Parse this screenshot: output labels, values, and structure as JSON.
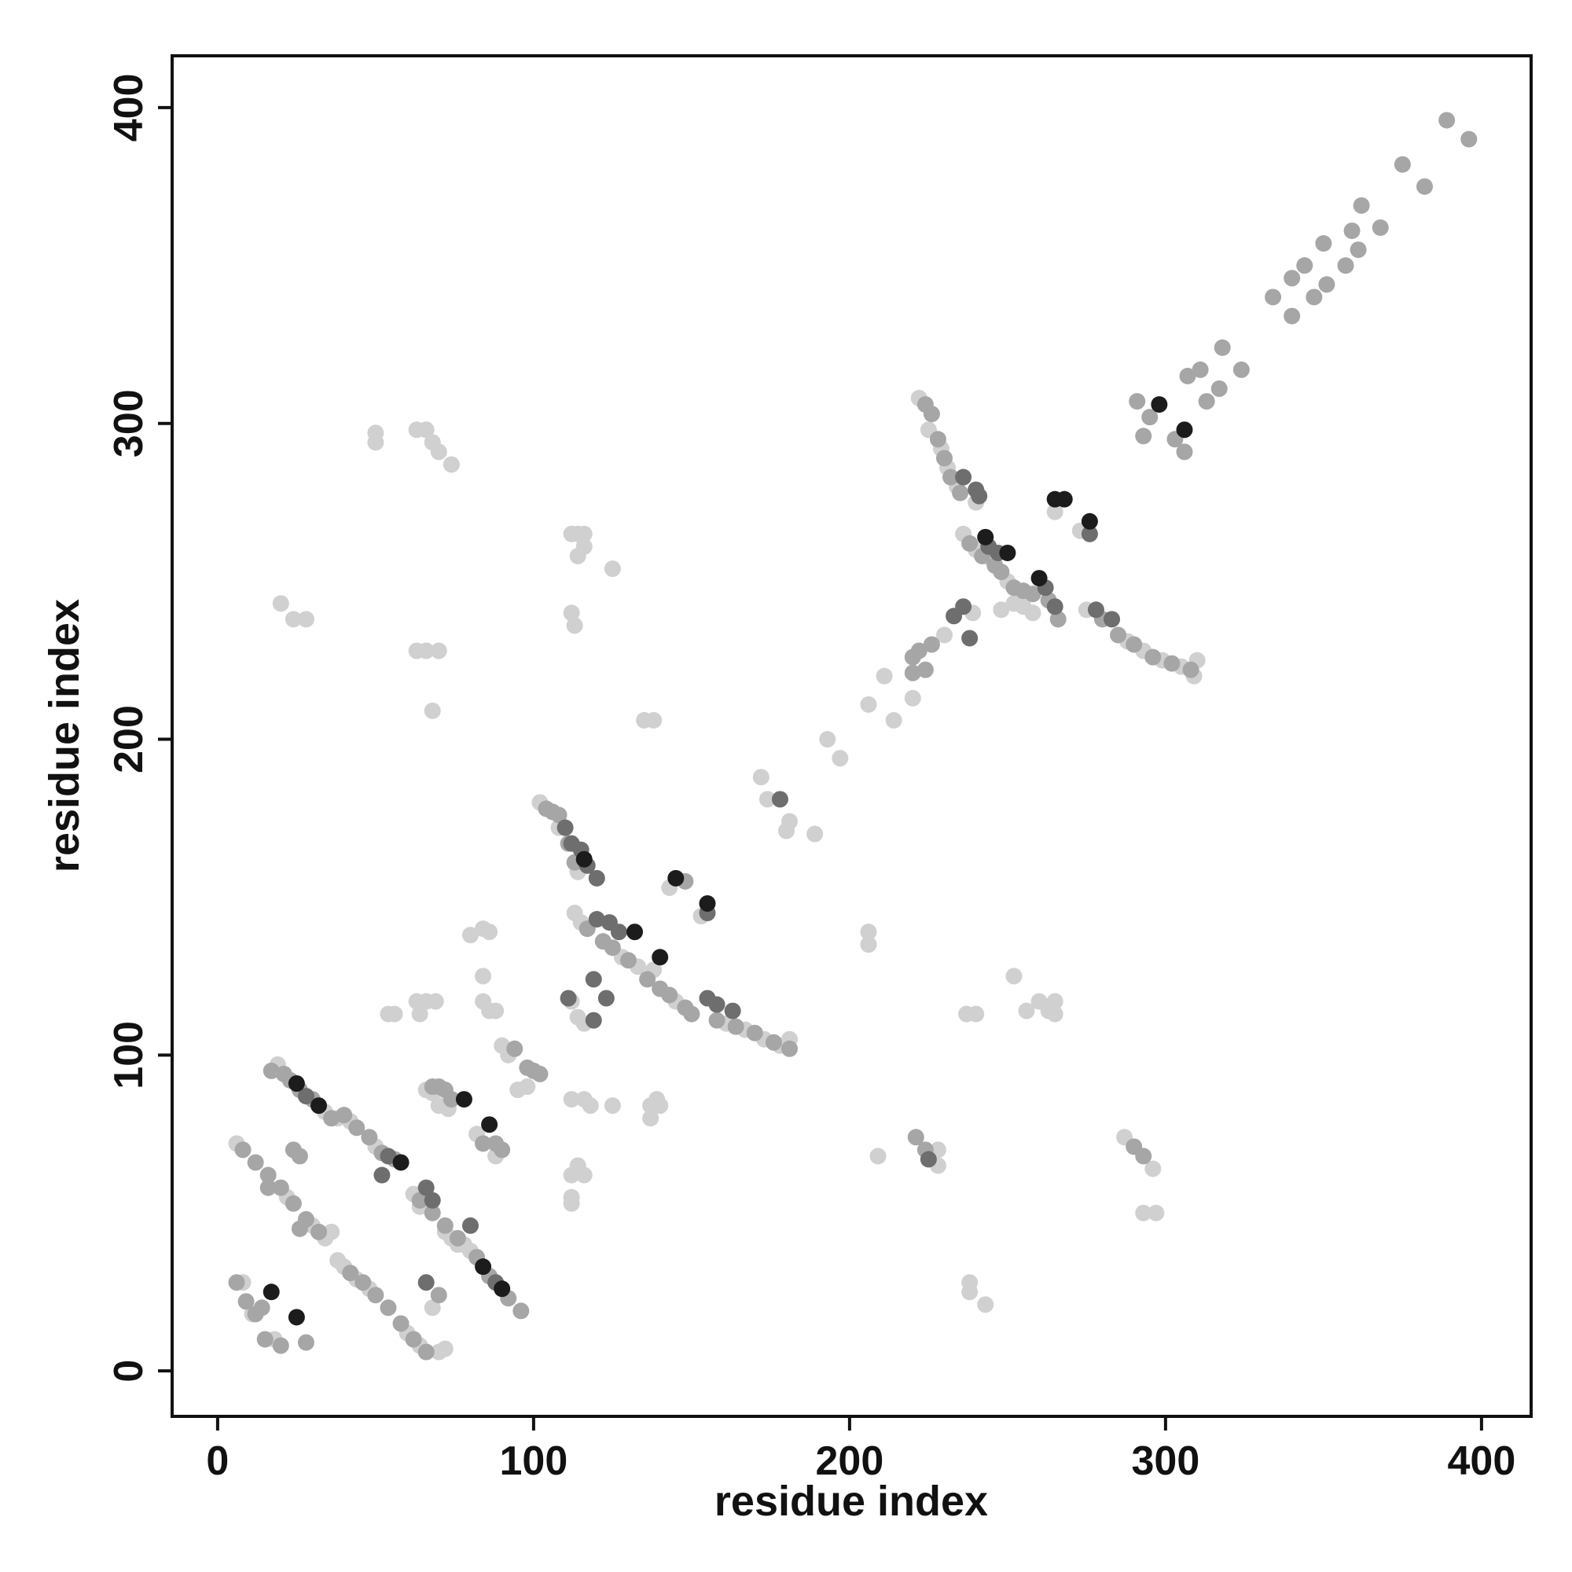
{
  "chart_data": {
    "type": "scatter",
    "xlabel": "residue index",
    "ylabel": "residue index",
    "xlim": [
      -14.4,
      415.7
    ],
    "ylim": [
      -14.4,
      416.4
    ],
    "xticks": [
      0,
      100,
      200,
      300,
      400
    ],
    "yticks": [
      0,
      100,
      200,
      300,
      400
    ],
    "grid": false,
    "series": [
      {
        "color": "#d0d0d0",
        "x": [
          222,
          225,
          229,
          231,
          234,
          240,
          236,
          238,
          240,
          245,
          250,
          248,
          258,
          255,
          252,
          275,
          288,
          293,
          299,
          305,
          310,
          309,
          239,
          230,
          222,
          265,
          273,
          211,
          220,
          214,
          206,
          197,
          193,
          189,
          180,
          181,
          174,
          172,
          102,
          108,
          114,
          113,
          115,
          117,
          128,
          133,
          138,
          145,
          153,
          161,
          167,
          173,
          178,
          181,
          143,
          112,
          114,
          116,
          19,
          34,
          38,
          42,
          50,
          38,
          40,
          44,
          48,
          34,
          36,
          22,
          30,
          60,
          62,
          64,
          66,
          70,
          72,
          68,
          62,
          64,
          72,
          74,
          76,
          78,
          80,
          82,
          86,
          66,
          68,
          70,
          73,
          82,
          84,
          88,
          90,
          92,
          95,
          98,
          6,
          8,
          11,
          18,
          50,
          50,
          63,
          66,
          68,
          70,
          74,
          20,
          24,
          28,
          63,
          66,
          70,
          68,
          80,
          84,
          86,
          84,
          84,
          86,
          88,
          63,
          66,
          69,
          54,
          56,
          64,
          112,
          114,
          116,
          114,
          116,
          112,
          113,
          125,
          135,
          138,
          112,
          116,
          118,
          125,
          137,
          139,
          140,
          137,
          114,
          116,
          112,
          112,
          112,
          206,
          206,
          209,
          237,
          240,
          252,
          256,
          260,
          263,
          265,
          265,
          238,
          238,
          243,
          287,
          296,
          293,
          297,
          228,
          228
        ],
        "y": [
          308,
          298,
          292,
          286,
          280,
          275,
          265,
          262,
          260,
          257,
          250,
          241,
          240,
          242,
          243,
          241,
          231,
          228,
          225,
          223,
          225,
          220,
          240,
          233,
          308,
          272,
          266,
          220,
          213,
          206,
          211,
          194,
          200,
          170,
          171,
          174,
          181,
          188,
          180,
          172,
          158,
          145,
          142,
          140,
          131,
          128,
          127,
          117,
          144,
          110,
          108,
          105,
          103,
          105,
          153,
          117,
          112,
          110,
          97,
          82,
          80,
          79,
          71,
          35,
          33,
          29,
          26,
          42,
          44,
          55,
          46,
          12,
          10,
          8,
          6,
          6,
          7,
          20,
          56,
          52,
          44,
          42,
          40,
          40,
          38,
          36,
          30,
          89,
          88,
          84,
          83,
          75,
          72,
          68,
          103,
          100,
          89,
          90,
          72,
          28,
          18,
          10,
          297,
          294,
          298,
          298,
          294,
          291,
          287,
          243,
          238,
          238,
          228,
          228,
          228,
          209,
          138,
          140,
          139,
          125,
          117,
          114,
          114,
          117,
          117,
          117,
          113,
          113,
          113,
          265,
          265,
          265,
          258,
          261,
          240,
          236,
          254,
          206,
          206,
          86,
          86,
          84,
          84,
          84,
          86,
          84,
          80,
          65,
          62,
          62,
          53,
          55,
          139,
          135,
          68,
          113,
          113,
          125,
          114,
          117,
          114,
          117,
          113,
          28,
          25,
          21,
          74,
          64,
          50,
          50,
          70,
          65
        ]
      },
      {
        "color": "#a6a6a6",
        "x": [
          389,
          396,
          375,
          382,
          362,
          368,
          359,
          350,
          361,
          344,
          357,
          340,
          351,
          347,
          334,
          340,
          318,
          324,
          311,
          307,
          317,
          313,
          291,
          295,
          303,
          293,
          306,
          224,
          226,
          228,
          230,
          232,
          235,
          238,
          242,
          246,
          248,
          252,
          255,
          258,
          263,
          266,
          280,
          285,
          290,
          296,
          302,
          308,
          226,
          222,
          220,
          224,
          220,
          104,
          106,
          108,
          111,
          113,
          117,
          122,
          125,
          130,
          136,
          140,
          143,
          148,
          150,
          158,
          164,
          170,
          176,
          181,
          148,
          17,
          21,
          23,
          26,
          30,
          36,
          40,
          44,
          48,
          52,
          56,
          8,
          12,
          16,
          20,
          24,
          28,
          32,
          24,
          26,
          16,
          26,
          42,
          46,
          50,
          54,
          58,
          62,
          66,
          70,
          64,
          68,
          72,
          76,
          82,
          86,
          92,
          96,
          68,
          70,
          74,
          72,
          6,
          9,
          12,
          14,
          15,
          20,
          28,
          84,
          88,
          90,
          94,
          98,
          100,
          102,
          221,
          224,
          290,
          293
        ],
        "y": [
          396,
          390,
          382,
          375,
          369,
          362,
          361,
          357,
          355,
          350,
          350,
          346,
          344,
          340,
          340,
          334,
          324,
          317,
          317,
          315,
          311,
          307,
          307,
          302,
          295,
          296,
          291,
          306,
          303,
          295,
          289,
          283,
          278,
          262,
          258,
          255,
          253,
          248,
          247,
          246,
          244,
          238,
          238,
          233,
          230,
          226,
          224,
          222,
          230,
          228,
          226,
          222,
          221,
          178,
          177,
          176,
          167,
          161,
          140,
          136,
          134,
          130,
          124,
          121,
          119,
          115,
          113,
          111,
          109,
          107,
          104,
          102,
          155,
          95,
          94,
          92,
          89,
          86,
          80,
          81,
          77,
          74,
          69,
          67,
          70,
          66,
          62,
          58,
          53,
          48,
          44,
          70,
          68,
          58,
          45,
          31,
          28,
          24,
          20,
          15,
          10,
          6,
          24,
          54,
          50,
          46,
          42,
          36,
          30,
          23,
          19,
          90,
          90,
          86,
          89,
          28,
          22,
          18,
          20,
          10,
          8,
          9,
          72,
          72,
          70,
          102,
          96,
          95,
          94,
          74,
          70,
          71,
          68
        ]
      },
      {
        "color": "#6e6e6e",
        "x": [
          236,
          240,
          241,
          244,
          265,
          278,
          283,
          236,
          233,
          238,
          276,
          178,
          110,
          112,
          115,
          117,
          120,
          120,
          124,
          127,
          155,
          155,
          158,
          163,
          111,
          119,
          123,
          119,
          66,
          225,
          247,
          262,
          28,
          54,
          68,
          80,
          66,
          88,
          52
        ],
        "y": [
          283,
          279,
          277,
          261,
          242,
          241,
          238,
          242,
          239,
          232,
          265,
          181,
          172,
          167,
          165,
          160,
          156,
          143,
          142,
          139,
          145,
          118,
          116,
          114,
          118,
          124,
          118,
          111,
          58,
          67,
          259,
          248,
          87,
          68,
          54,
          46,
          28,
          28,
          62
        ]
      },
      {
        "color": "#1c1c1c",
        "x": [
          298,
          306,
          250,
          243,
          260,
          265,
          268,
          276,
          145,
          155,
          116,
          132,
          140,
          25,
          32,
          58,
          84,
          90,
          17,
          25,
          78,
          86
        ],
        "y": [
          306,
          298,
          259,
          264,
          251,
          276,
          276,
          269,
          156,
          148,
          162,
          139,
          131,
          91,
          84,
          66,
          33,
          26,
          25,
          17,
          86,
          78
        ]
      }
    ]
  }
}
